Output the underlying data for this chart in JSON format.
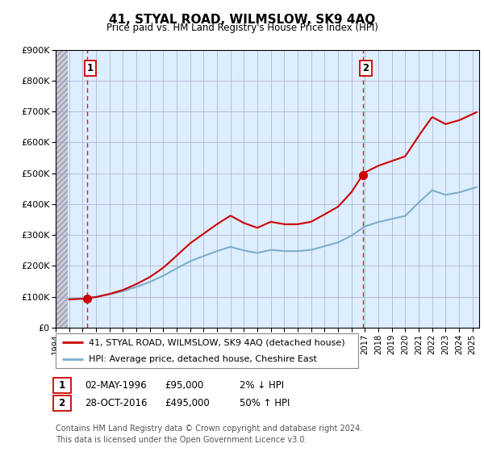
{
  "title": "41, STYAL ROAD, WILMSLOW, SK9 4AQ",
  "subtitle": "Price paid vs. HM Land Registry's House Price Index (HPI)",
  "ylim": [
    0,
    900000
  ],
  "yticks": [
    0,
    100000,
    200000,
    300000,
    400000,
    500000,
    600000,
    700000,
    800000,
    900000
  ],
  "ytick_labels": [
    "£0",
    "£100K",
    "£200K",
    "£300K",
    "£400K",
    "£500K",
    "£600K",
    "£700K",
    "£800K",
    "£900K"
  ],
  "xlim_start": 1994.0,
  "xlim_end": 2025.5,
  "hatch_end": 1994.92,
  "transaction1": {
    "date_num": 1996.33,
    "price": 95000,
    "label": "1",
    "date_str": "02-MAY-1996",
    "price_str": "£95,000",
    "note": "2% ↓ HPI"
  },
  "transaction2": {
    "date_num": 2016.83,
    "price": 495000,
    "label": "2",
    "date_str": "28-OCT-2016",
    "price_str": "£495,000",
    "note": "50% ↑ HPI"
  },
  "legend_line1": "41, STYAL ROAD, WILMSLOW, SK9 4AQ (detached house)",
  "legend_line2": "HPI: Average price, detached house, Cheshire East",
  "footnote": "Contains HM Land Registry data © Crown copyright and database right 2024.\nThis data is licensed under the Open Government Licence v3.0.",
  "line_color_red": "#cc0000",
  "line_color_blue": "#7aafc9",
  "grid_color": "#aaaacc",
  "bg_color": "#ddeeff",
  "hatch_bg": "#c8ccd8",
  "label_box_color": "#cc0000",
  "years_hpi": [
    1995,
    1996,
    1997,
    1998,
    1999,
    2000,
    2001,
    2002,
    2003,
    2004,
    2005,
    2006,
    2007,
    2008,
    2009,
    2010,
    2011,
    2012,
    2013,
    2014,
    2015,
    2016,
    2017,
    2018,
    2019,
    2020,
    2021,
    2022,
    2023,
    2024,
    2025.3
  ],
  "hpi_values": [
    93000,
    95000,
    100000,
    108000,
    118000,
    132000,
    148000,
    168000,
    192000,
    215000,
    232000,
    248000,
    262000,
    250000,
    242000,
    252000,
    248000,
    248000,
    252000,
    264000,
    276000,
    298000,
    328000,
    342000,
    352000,
    362000,
    405000,
    445000,
    430000,
    438000,
    455000
  ]
}
